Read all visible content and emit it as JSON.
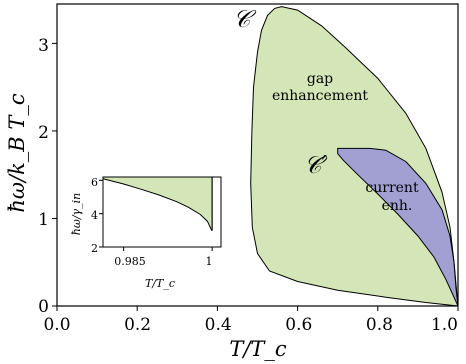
{
  "chart_data": [
    {
      "type": "area",
      "xlabel": "T/T_c",
      "ylabel": "ħω/k_B T_c",
      "xlim": [
        0.0,
        1.0
      ],
      "ylim": [
        0.0,
        3.45
      ],
      "xticks": [
        0.0,
        0.2,
        0.4,
        0.6,
        0.8,
        1.0
      ],
      "xtick_labels": [
        "0.0",
        "0.2",
        "0.4",
        "0.6",
        "0.8",
        "1.0"
      ],
      "yticks": [
        0,
        1,
        2,
        3
      ],
      "ytick_labels": [
        "0",
        "1",
        "2",
        "3"
      ],
      "grid": false,
      "regions": [
        {
          "name": "gap enhancement",
          "curve_label": "𝒞",
          "color": "#d4e6b7",
          "text_lines": [
            "gap",
            "enhancement"
          ],
          "boundary": [
            [
              1.0,
              0.0
            ],
            [
              0.92,
              0.04
            ],
            [
              0.82,
              0.1
            ],
            [
              0.7,
              0.18
            ],
            [
              0.6,
              0.28
            ],
            [
              0.53,
              0.4
            ],
            [
              0.5,
              0.6
            ],
            [
              0.487,
              0.9
            ],
            [
              0.483,
              1.4
            ],
            [
              0.486,
              2.0
            ],
            [
              0.49,
              2.5
            ],
            [
              0.5,
              2.9
            ],
            [
              0.51,
              3.15
            ],
            [
              0.525,
              3.32
            ],
            [
              0.543,
              3.4
            ],
            [
              0.56,
              3.42
            ],
            [
              0.6,
              3.38
            ],
            [
              0.66,
              3.2
            ],
            [
              0.72,
              2.95
            ],
            [
              0.8,
              2.6
            ],
            [
              0.87,
              2.2
            ],
            [
              0.92,
              1.8
            ],
            [
              0.96,
              1.3
            ],
            [
              0.98,
              0.9
            ],
            [
              0.99,
              0.5
            ],
            [
              1.0,
              0.0
            ]
          ]
        },
        {
          "name": "current enhancement",
          "curve_label": "𝒞′",
          "color": "#a29fd3",
          "text_lines": [
            "current",
            "enh."
          ],
          "boundary": [
            [
              0.7,
              1.8
            ],
            [
              0.72,
              1.8
            ],
            [
              0.78,
              1.8
            ],
            [
              0.82,
              1.78
            ],
            [
              0.87,
              1.65
            ],
            [
              0.92,
              1.4
            ],
            [
              0.96,
              1.1
            ],
            [
              0.98,
              0.8
            ],
            [
              0.99,
              0.5
            ],
            [
              0.995,
              0.2
            ],
            [
              1.0,
              0.0
            ],
            [
              0.97,
              0.3
            ],
            [
              0.94,
              0.56
            ],
            [
              0.9,
              0.8
            ],
            [
              0.85,
              1.05
            ],
            [
              0.8,
              1.28
            ],
            [
              0.75,
              1.5
            ],
            [
              0.715,
              1.66
            ],
            [
              0.7,
              1.74
            ],
            [
              0.7,
              1.8
            ]
          ]
        }
      ]
    },
    {
      "type": "area",
      "xlabel": "T/T_c",
      "ylabel": "ħω/γ_in",
      "xlim": [
        0.9815,
        1.0015
      ],
      "ylim": [
        2,
        6.2
      ],
      "xticks": [
        0.985,
        1.0
      ],
      "xtick_labels": [
        "0.985",
        "1"
      ],
      "yticks": [
        2,
        4,
        6
      ],
      "ytick_labels": [
        "2",
        "4",
        "6"
      ],
      "color": "#d4e6b7",
      "upper": [
        [
          0.9815,
          6.2
        ],
        [
          1.0,
          6.2
        ]
      ],
      "lower": [
        [
          0.9815,
          6.1
        ],
        [
          0.985,
          5.78
        ],
        [
          0.988,
          5.46
        ],
        [
          0.991,
          5.12
        ],
        [
          0.994,
          4.72
        ],
        [
          0.996,
          4.38
        ],
        [
          0.998,
          3.95
        ],
        [
          0.9992,
          3.55
        ],
        [
          0.9999,
          3.0
        ],
        [
          1.0,
          3.0
        ]
      ]
    }
  ]
}
